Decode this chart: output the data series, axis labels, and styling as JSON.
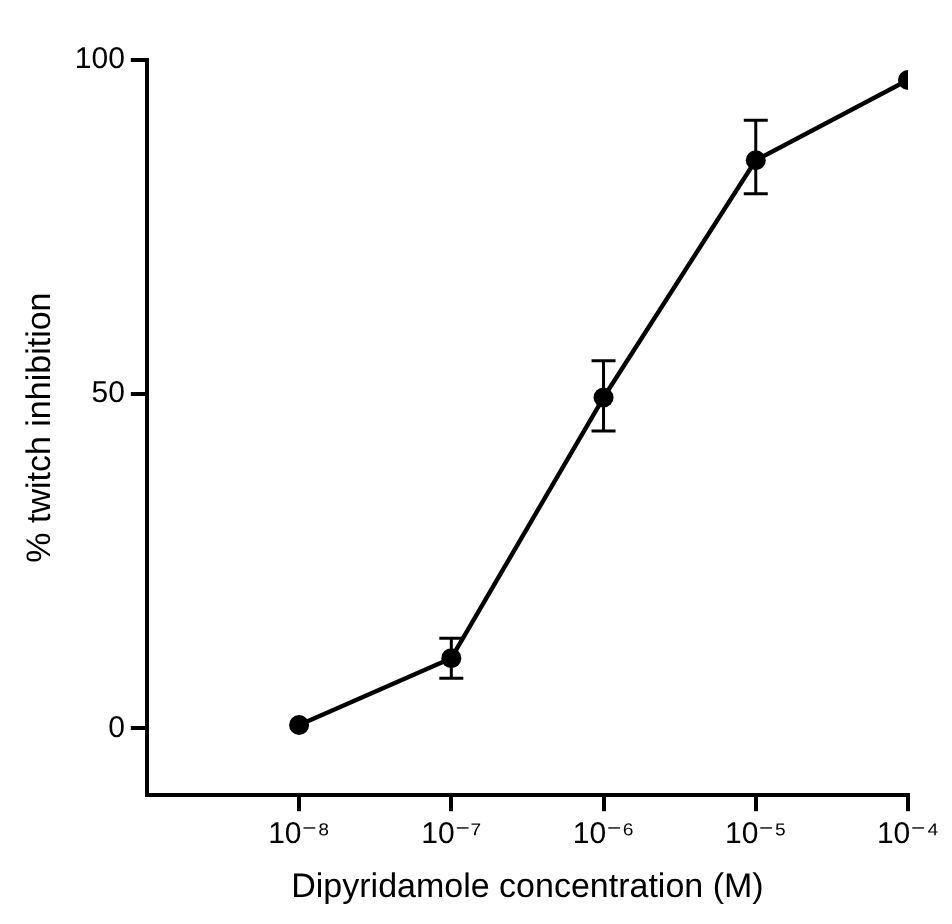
{
  "chart_data": {
    "type": "line",
    "xlabel": "Dipyridamole concentration (M)",
    "ylabel": "% twitch inhibition",
    "x": [
      1e-08,
      1e-07,
      1e-06,
      1e-05,
      0.0001
    ],
    "series": [
      {
        "color": "#000000",
        "values": [
          0.5,
          10.5,
          49.5,
          85,
          97
        ],
        "errors": [
          null,
          [
            7.5,
            13.5
          ],
          [
            44.5,
            55
          ],
          [
            80,
            91
          ],
          null
        ]
      }
    ],
    "log": "x",
    "xlim": [
      1e-09,
      0.0001
    ],
    "xticks": [
      {
        "value": 1e-08,
        "label": "10⁻⁸"
      },
      {
        "value": 1e-07,
        "label": "10⁻⁷"
      },
      {
        "value": 1e-06,
        "label": "10⁻⁶"
      },
      {
        "value": 1e-05,
        "label": "10⁻⁵"
      },
      {
        "value": 0.0001,
        "label": "10⁻⁴"
      }
    ],
    "ylim": [
      -10,
      100
    ],
    "yticks": [
      0,
      50,
      100
    ],
    "grid": false,
    "legend": false,
    "marker": "circle",
    "line_style": "solid"
  }
}
